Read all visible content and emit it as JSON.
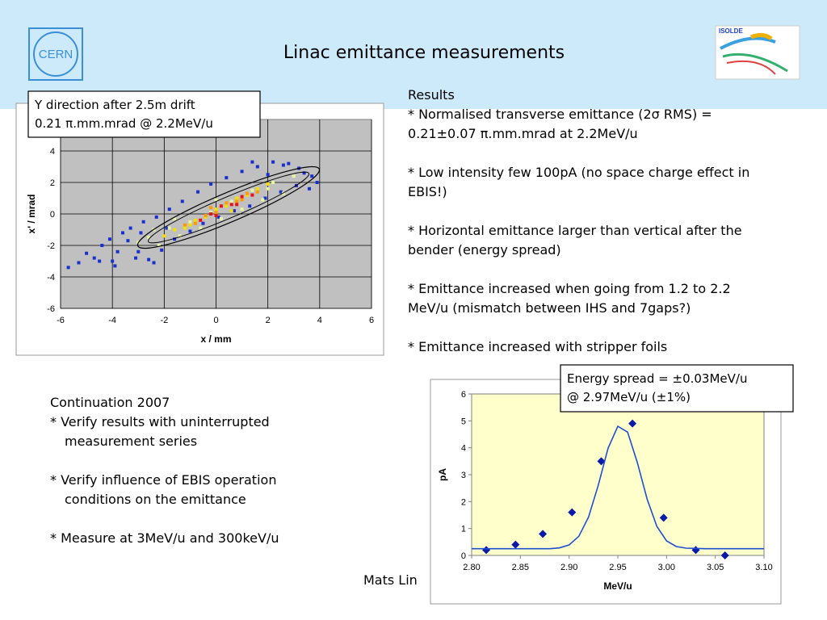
{
  "logo": "CERN",
  "isolde": "ISOLDE",
  "title": "Linac emittance measurements",
  "results": [
    [
      "Results",
      "* Normalised transverse emittance (2σ RMS) =",
      "0.21±0.07 π.mm.mrad at 2.2MeV/u"
    ],
    [
      "* Low intensity few 100pA (no space charge effect in",
      "EBIS!)"
    ],
    [
      "* Horizontal emittance larger than vertical after the",
      "bender (energy spread)"
    ],
    [
      "* Emittance increased when going from 1.2 to 2.2",
      "MeV/u (mismatch between IHS and 7gaps?)"
    ],
    [
      "* Emittance increased with stripper foils"
    ]
  ],
  "continuation": [
    [
      "Continuation 2007",
      "* Verify results with uninterrupted",
      "measurement series"
    ],
    [
      "* Verify influence of EBIS operation",
      "conditions on the emittance"
    ],
    [
      "* Measure at 3MeV/u and 300keV/u"
    ]
  ],
  "author": "Mats Lin",
  "chart_data": [
    {
      "type": "scatter",
      "x_label": "x / mm",
      "y_label": "x' / mrad",
      "annotation": [
        "Y direction after 2.5m drift",
        "0.21 π.mm.mrad @ 2.2MeV/u"
      ],
      "xlim": [
        -6,
        6
      ],
      "xticks": [
        -6,
        -4,
        -2,
        0,
        2,
        4,
        6
      ],
      "ylim": [
        -6,
        6
      ],
      "yticks": [
        -6,
        -4,
        -2,
        0,
        2,
        4
      ],
      "grid": true,
      "marker": "square",
      "series": [
        {
          "color": "#1a2fd0",
          "x": [
            -5.7,
            -5.3,
            -5,
            -4.7,
            -4.4,
            -4.5,
            -4.1,
            -3.8,
            -3.6,
            -3.9,
            -3.3,
            -3.1,
            -3.4,
            -2.8,
            -2.6,
            -2.9,
            -2.3,
            -2.1,
            -1.8,
            -1.6,
            -1.9,
            -1.3,
            -1,
            -0.7,
            -0.5,
            -0.2,
            0.1,
            0.4,
            0.7,
            1,
            1.3,
            1.6,
            1.9,
            2.2,
            2.5,
            2.8,
            3.1,
            3.4,
            3.7,
            3.9,
            3.6,
            3.2,
            2.6,
            2.0,
            1.4,
            -2.4,
            -3.0,
            -4.0
          ],
          "values": [
            -3.4,
            -3.1,
            -2.5,
            -2.8,
            -2,
            -3,
            -1.6,
            -2.4,
            -1.2,
            -3.3,
            -0.9,
            -2.8,
            -1.7,
            -0.5,
            -2.9,
            -1.2,
            -0.2,
            -2.3,
            0.3,
            -1.6,
            -0.9,
            0.8,
            -1.1,
            1.4,
            -0.6,
            1.9,
            -0.2,
            2.3,
            0.2,
            2.7,
            0.5,
            3.0,
            1.0,
            3.3,
            1.4,
            3.2,
            1.8,
            2.6,
            2.4,
            2.0,
            1.6,
            2.9,
            3.1,
            2.5,
            3.3,
            -3.1,
            -2.4,
            -3.0
          ]
        },
        {
          "color": "#e8f5a0",
          "x": [
            -3,
            -2.6,
            -2.2,
            -1.8,
            -1.4,
            -1,
            -0.6,
            -0.2,
            0.2,
            0.6,
            1,
            1.4,
            1.8,
            2.2,
            2.6,
            3.0,
            -2.4,
            -1.6,
            0.0,
            2.0
          ],
          "values": [
            -1.8,
            -1.5,
            -2.0,
            -0.9,
            -1.4,
            -0.5,
            -0.9,
            0.1,
            -0.3,
            0.8,
            0.3,
            1.5,
            0.9,
            2.0,
            1.3,
            2.4,
            -1.0,
            -0.3,
            0.9,
            1.6
          ]
        },
        {
          "color": "#f5e000",
          "x": [
            -2,
            -1.6,
            -1.2,
            -0.8,
            -0.4,
            0,
            0.4,
            0.8,
            1.2,
            1.6,
            2.0,
            -1.0,
            0.6
          ],
          "values": [
            -1.4,
            -1.0,
            -0.9,
            -0.4,
            -0.2,
            0.3,
            0.5,
            1.0,
            1.2,
            1.6,
            1.9,
            -0.7,
            0.2
          ]
        },
        {
          "color": "#ff9900",
          "x": [
            -1.2,
            -0.8,
            -0.4,
            0,
            0.4,
            0.8,
            1.2,
            1.6,
            -0.2,
            1.0
          ],
          "values": [
            -0.7,
            -0.6,
            -0.1,
            0.1,
            0.7,
            0.8,
            1.3,
            1.4,
            0.4,
            0.9
          ]
        },
        {
          "color": "#ee1111",
          "x": [
            -0.6,
            -0.2,
            0.2,
            0.6,
            1.0,
            1.4,
            0.0,
            0.8
          ],
          "values": [
            -0.4,
            0.0,
            0.5,
            0.6,
            1.1,
            1.2,
            -0.1,
            0.6
          ]
        }
      ]
    },
    {
      "type": "scatter",
      "x_label": "MeV/u",
      "y_label": "pA",
      "annotation": [
        "Energy spread = ±0.03MeV/u",
        "@ 2.97MeV/u (±1%)"
      ],
      "xlim": [
        2.8,
        3.1
      ],
      "xticks": [
        {
          "value": 2.8,
          "label": "2.80"
        },
        {
          "value": 2.85,
          "label": "2.85"
        },
        {
          "value": 2.9,
          "label": "2.90"
        },
        {
          "value": 2.95,
          "label": "2.95"
        },
        {
          "value": 3.0,
          "label": "3.00"
        },
        {
          "value": 3.05,
          "label": "3.05"
        },
        {
          "value": 3.1,
          "label": "3.10"
        }
      ],
      "ylim": [
        0,
        6
      ],
      "yticks": [
        0,
        1,
        2,
        3,
        4,
        5,
        6
      ],
      "grid": false,
      "marker": "diamond",
      "series": [
        {
          "color": "#0a1aa8",
          "x": [
            2.815,
            2.845,
            2.873,
            2.903,
            2.933,
            2.965,
            2.997,
            3.03,
            3.06
          ],
          "values": [
            0.2,
            0.4,
            0.8,
            1.6,
            3.5,
            4.9,
            1.4,
            0.2,
            0.0
          ]
        },
        {
          "type": "line",
          "color": "#1f4fd0",
          "x": [
            2.8,
            2.86,
            2.88,
            2.89,
            2.9,
            2.91,
            2.92,
            2.93,
            2.94,
            2.95,
            2.96,
            2.97,
            2.98,
            2.99,
            3.0,
            3.01,
            3.02,
            3.04,
            3.1
          ],
          "values": [
            0.25,
            0.25,
            0.25,
            0.28,
            0.39,
            0.71,
            1.43,
            2.62,
            3.98,
            4.8,
            4.58,
            3.46,
            2.1,
            1.08,
            0.54,
            0.33,
            0.27,
            0.25,
            0.25
          ]
        }
      ]
    }
  ]
}
